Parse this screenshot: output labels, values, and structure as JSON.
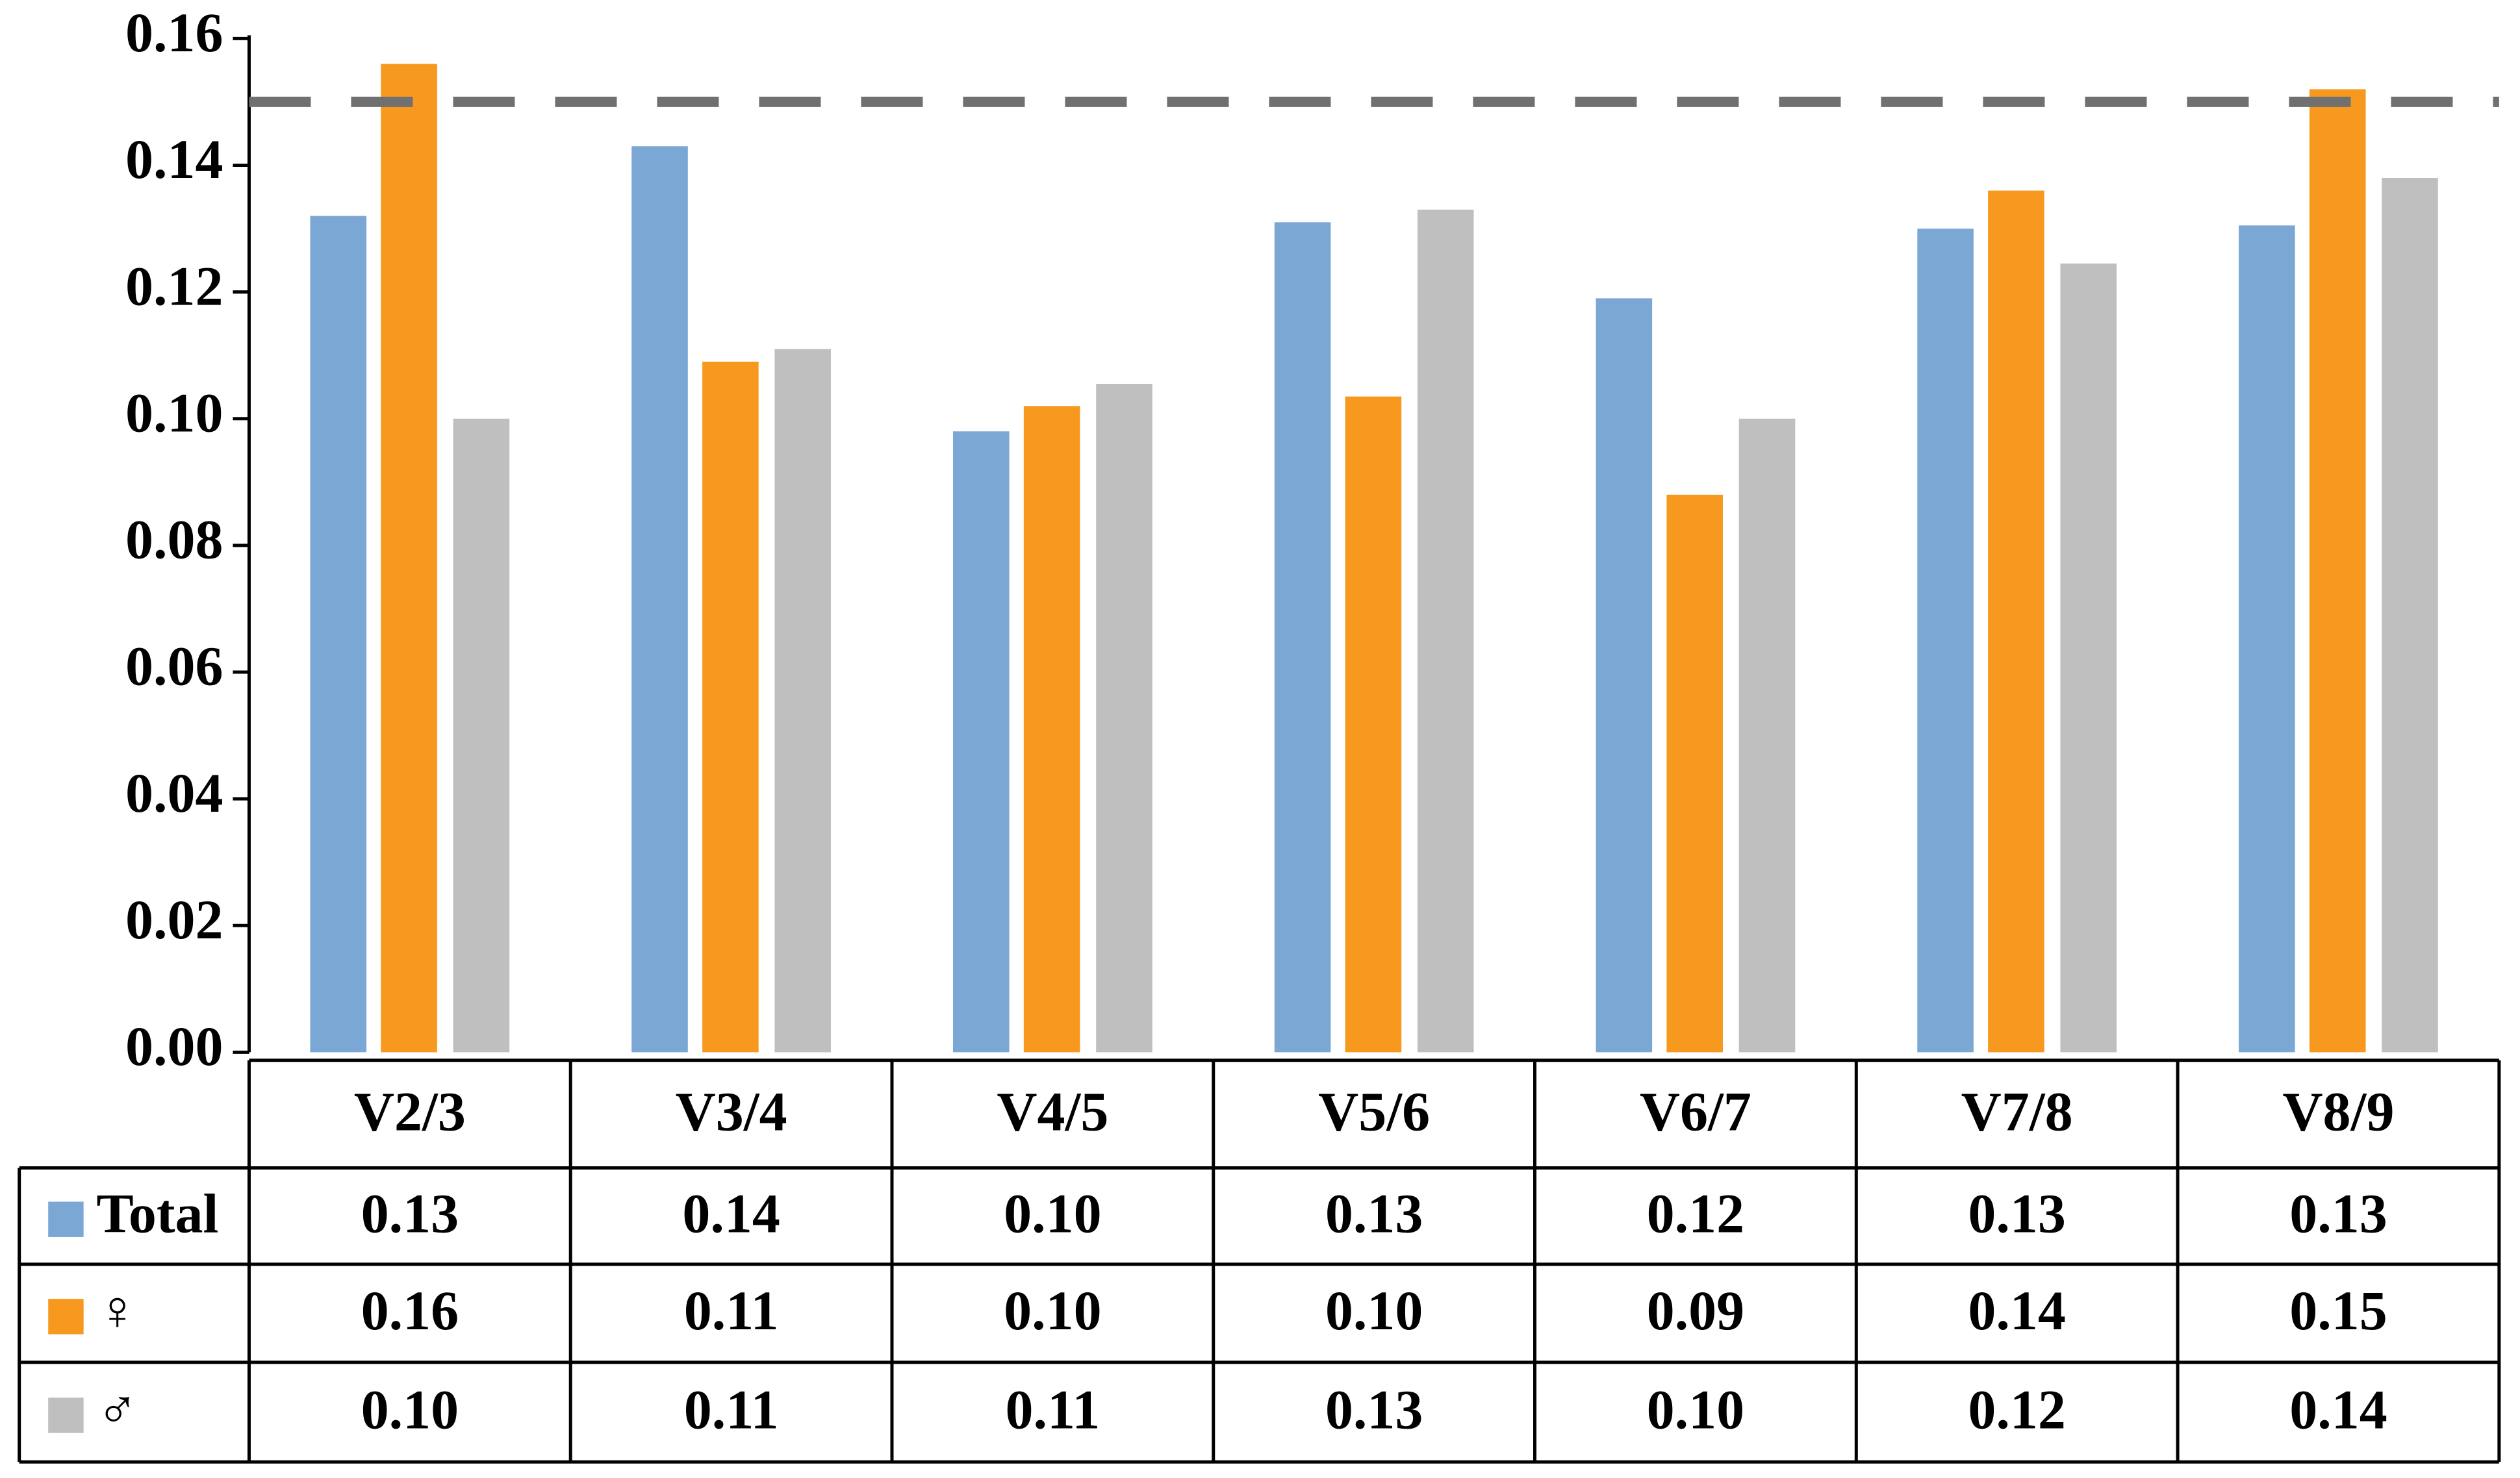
{
  "chart_data": {
    "type": "bar",
    "categories": [
      "V2/3",
      "V3/4",
      "V4/5",
      "V5/6",
      "V6/7",
      "V7/8",
      "V8/9"
    ],
    "series": [
      {
        "name": "Total",
        "color": "#7ba7d4",
        "values": [
          0.132,
          0.143,
          0.098,
          0.131,
          0.119,
          0.13,
          0.1305
        ],
        "value_labels": [
          "0.13",
          "0.14",
          "0.10",
          "0.13",
          "0.12",
          "0.13",
          "0.13"
        ]
      },
      {
        "name": "♀",
        "color": "#f7981f",
        "values": [
          0.156,
          0.109,
          0.102,
          0.1035,
          0.088,
          0.136,
          0.152
        ],
        "value_labels": [
          "0.16",
          "0.11",
          "0.10",
          "0.10",
          "0.09",
          "0.14",
          "0.15"
        ]
      },
      {
        "name": "♂",
        "color": "#bfbfbf",
        "values": [
          0.1,
          0.111,
          0.1055,
          0.133,
          0.1,
          0.1245,
          0.138
        ],
        "value_labels": [
          "0.10",
          "0.11",
          "0.11",
          "0.13",
          "0.10",
          "0.12",
          "0.14"
        ]
      }
    ],
    "ylim": [
      0,
      0.16
    ],
    "yticks": [
      {
        "value": 0,
        "label": "0.00"
      },
      0.02,
      0.04,
      0.06,
      0.08,
      {
        "value": 0.1,
        "label": "0.10"
      },
      0.12,
      0.14,
      0.16
    ],
    "reference_line": 0.15,
    "grid": false
  }
}
